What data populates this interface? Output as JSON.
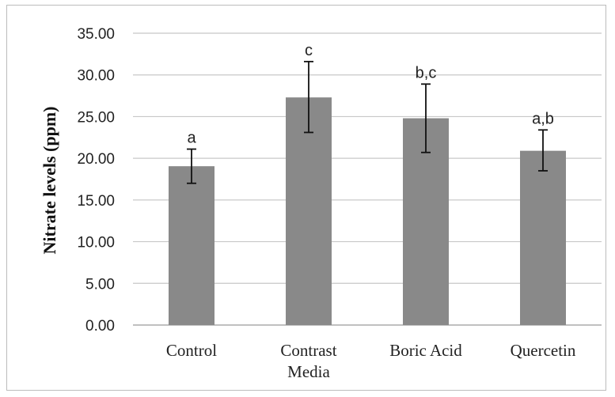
{
  "chart_data": {
    "type": "bar",
    "categories": [
      [
        "Control"
      ],
      [
        "Contrast",
        "Media"
      ],
      [
        "Boric Acid"
      ],
      [
        "Quercetin"
      ]
    ],
    "values": [
      19.05,
      27.3,
      24.8,
      20.9
    ],
    "error_low": [
      17.0,
      23.1,
      20.7,
      18.5
    ],
    "error_high": [
      21.1,
      31.6,
      28.9,
      23.4
    ],
    "annotations": [
      "a",
      "c",
      "b,c",
      "a,b"
    ],
    "ylabel": "Nitrate levels (ppm)",
    "ylim": [
      0,
      35
    ],
    "yticks": [
      "0.00",
      "5.00",
      "10.00",
      "15.00",
      "20.00",
      "25.00",
      "30.00",
      "35.00"
    ],
    "grid": true,
    "bar_color": "#898989"
  }
}
